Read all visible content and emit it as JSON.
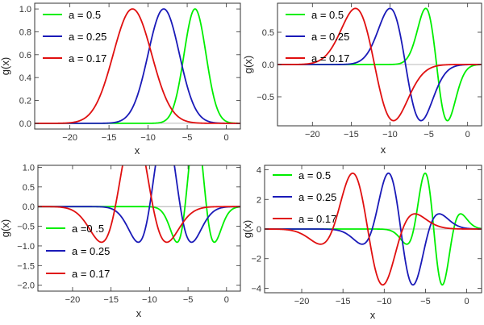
{
  "chart_data": [
    {
      "type": "line",
      "panel": "top-left",
      "xlabel": "x",
      "ylabel": "g(x)",
      "xlim": [
        -24.5,
        1.8
      ],
      "ylim": [
        -0.05,
        1.05
      ],
      "xticks": [
        -20,
        -15,
        -10,
        -5,
        0
      ],
      "xtick_labels": [
        "−20",
        "−15",
        "−10",
        "−5",
        "0"
      ],
      "yticks": [
        0.0,
        0.2,
        0.4,
        0.6,
        0.8,
        1.0
      ],
      "ytick_labels": [
        "0.0",
        "0.2",
        "0.4",
        "0.6",
        "0.8",
        "1.0"
      ],
      "grid": false,
      "legend_position": "top-left",
      "series": [
        {
          "name": "a = 0.5",
          "color": "#00ee00",
          "curve": {
            "form": "gauss",
            "center": -4,
            "sigma": 1.4,
            "amp": 1.0
          }
        },
        {
          "name": "a = 0.25",
          "color": "#1a1ab8",
          "curve": {
            "form": "gauss",
            "center": -8,
            "sigma": 2.0,
            "amp": 1.0
          }
        },
        {
          "name": "a = 0.17",
          "color": "#e01010",
          "curve": {
            "form": "gauss",
            "center": -12,
            "sigma": 2.45,
            "amp": 1.0
          }
        }
      ]
    },
    {
      "type": "line",
      "panel": "top-right",
      "xlabel": "x",
      "ylabel": "g(x)",
      "xlim": [
        -24.5,
        1.8
      ],
      "ylim": [
        -0.95,
        0.95
      ],
      "xticks": [
        -20,
        -15,
        -10,
        -5,
        0
      ],
      "xtick_labels": [
        "−20",
        "−15",
        "−10",
        "−5",
        "0"
      ],
      "yticks": [
        -0.5,
        0.0,
        0.5
      ],
      "ytick_labels": [
        "−0.5",
        "0.0",
        "0.5"
      ],
      "grid": false,
      "legend_position": "top-left",
      "series": [
        {
          "name": "a = 0.5",
          "color": "#00ee00",
          "curve": {
            "form": "dgauss",
            "center": -4,
            "sigma": 1.4,
            "amp": 0.87
          }
        },
        {
          "name": "a = 0.25",
          "color": "#1a1ab8",
          "curve": {
            "form": "dgauss",
            "center": -8,
            "sigma": 2.0,
            "amp": 0.87
          }
        },
        {
          "name": "a = 0.17",
          "color": "#e01010",
          "curve": {
            "form": "dgauss",
            "center": -12,
            "sigma": 2.45,
            "amp": 0.87
          }
        }
      ]
    },
    {
      "type": "line",
      "panel": "bottom-left",
      "xlabel": "x",
      "ylabel": "g(x)",
      "xlim": [
        -24.5,
        1.8
      ],
      "ylim": [
        -2.15,
        1.05
      ],
      "xticks": [
        -20,
        -15,
        -10,
        -5,
        0
      ],
      "xtick_labels": [
        "−20",
        "−15",
        "−10",
        "−5",
        "0"
      ],
      "yticks": [
        -2.0,
        -1.5,
        -1.0,
        -0.5,
        0.0,
        0.5,
        1.0
      ],
      "ytick_labels": [
        "−2.0",
        "−1.5",
        "−1.0",
        "−0.5",
        "0.0",
        "0.5",
        "1.0"
      ],
      "grid": false,
      "legend_position": "bottom-left",
      "series": [
        {
          "name": "a =0 .5",
          "color": "#00ee00",
          "curve": {
            "form": "hermite2",
            "center": -4,
            "sigma": 1.4,
            "amp": 2.03
          }
        },
        {
          "name": "a = 0.25",
          "color": "#1a1ab8",
          "curve": {
            "form": "hermite2",
            "center": -8,
            "sigma": 2.0,
            "amp": 2.03
          }
        },
        {
          "name": "a = 0.17",
          "color": "#e01010",
          "curve": {
            "form": "hermite2",
            "center": -12,
            "sigma": 2.45,
            "amp": 2.03
          }
        }
      ]
    },
    {
      "type": "line",
      "panel": "bottom-right",
      "xlabel": "x",
      "ylabel": "g(x)",
      "xlim": [
        -24.5,
        1.8
      ],
      "ylim": [
        -4.3,
        4.3
      ],
      "xticks": [
        -20,
        -15,
        -10,
        -5,
        0
      ],
      "xtick_labels": [
        "−20",
        "−15",
        "−10",
        "−5",
        "0"
      ],
      "yticks": [
        -4,
        -2,
        0,
        2,
        4
      ],
      "ytick_labels": [
        "−4",
        "−2",
        "0",
        "2",
        "4"
      ],
      "grid": false,
      "legend_position": "top-left",
      "series": [
        {
          "name": "a = 0.5",
          "color": "#00ee00",
          "curve": {
            "form": "hermite3",
            "center": -4,
            "sigma": 1.4,
            "amp": 3.9
          }
        },
        {
          "name": "a = 0.25",
          "color": "#1a1ab8",
          "curve": {
            "form": "hermite3",
            "center": -8,
            "sigma": 2.0,
            "amp": 3.9
          }
        },
        {
          "name": "a = 0.17",
          "color": "#e01010",
          "curve": {
            "form": "hermite3",
            "center": -12,
            "sigma": 2.45,
            "amp": 3.9
          }
        }
      ]
    }
  ]
}
